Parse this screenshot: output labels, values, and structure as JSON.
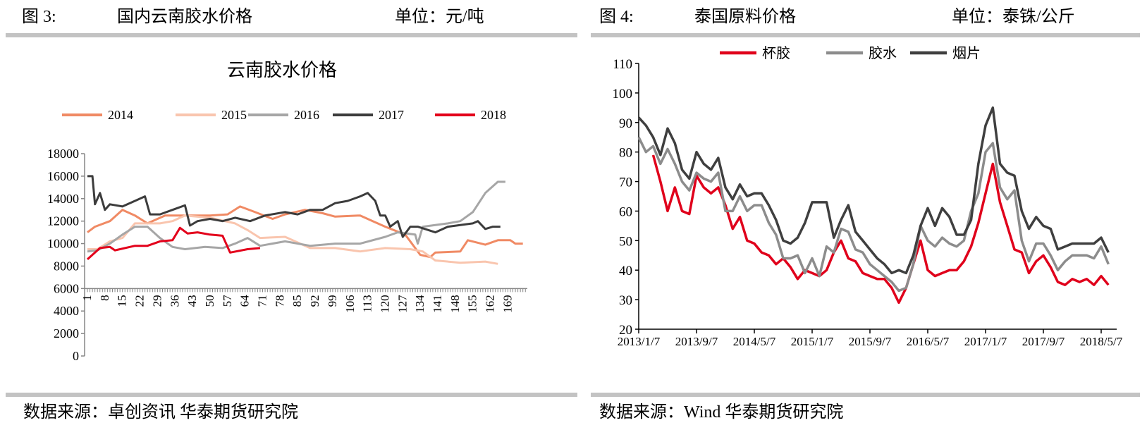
{
  "left_panel": {
    "figure_label": "图 3:",
    "figure_title": "国内云南胶水价格",
    "unit": "单位：元/吨",
    "source": "数据来源：卓创资讯  华泰期货研究院"
  },
  "right_panel": {
    "figure_label": "图 4:",
    "figure_title": "泰国原料价格",
    "unit": "单位：泰铢/公斤",
    "source": "数据来源：Wind  华泰期货研究院"
  },
  "chart_data": [
    {
      "type": "line",
      "title": "云南胶水价格",
      "xlabel": "",
      "ylabel": "",
      "ylim": [
        0,
        18000
      ],
      "x_axis_crosses_at": 6000,
      "xlim": [
        1,
        176
      ],
      "x_tick_labels": [
        "1",
        "8",
        "15",
        "22",
        "29",
        "36",
        "43",
        "50",
        "57",
        "64",
        "71",
        "78",
        "85",
        "92",
        "99",
        "106",
        "113",
        "120",
        "127",
        "134",
        "141",
        "148",
        "155",
        "162",
        "169"
      ],
      "y_tick_labels": [
        "0",
        "2000",
        "4000",
        "6000",
        "8000",
        "10000",
        "12000",
        "14000",
        "16000",
        "18000"
      ],
      "grid": false,
      "legend": "top",
      "series": [
        {
          "name": "2014",
          "color": "#F08A64",
          "points": [
            [
              1,
              11000
            ],
            [
              4,
              11500
            ],
            [
              10,
              12000
            ],
            [
              15,
              13000
            ],
            [
              20,
              12500
            ],
            [
              25,
              11800
            ],
            [
              32,
              12500
            ],
            [
              40,
              12500
            ],
            [
              50,
              12500
            ],
            [
              57,
              12600
            ],
            [
              62,
              13300
            ],
            [
              68,
              12800
            ],
            [
              75,
              12200
            ],
            [
              80,
              12600
            ],
            [
              88,
              13000
            ],
            [
              95,
              12700
            ],
            [
              100,
              12400
            ],
            [
              110,
              12500
            ],
            [
              115,
              12000
            ],
            [
              120,
              11500
            ],
            [
              128,
              10800
            ],
            [
              134,
              9000
            ],
            [
              138,
              8800
            ],
            [
              140,
              9200
            ],
            [
              150,
              9300
            ],
            [
              153,
              10300
            ],
            [
              160,
              9900
            ],
            [
              165,
              10300
            ],
            [
              170,
              10300
            ],
            [
              172,
              10000
            ],
            [
              175,
              10000
            ]
          ]
        },
        {
          "name": "2015",
          "color": "#F9C5AE",
          "points": [
            [
              1,
              9500
            ],
            [
              5,
              9500
            ],
            [
              10,
              10200
            ],
            [
              15,
              10500
            ],
            [
              20,
              11800
            ],
            [
              30,
              11800
            ],
            [
              35,
              12000
            ],
            [
              40,
              12500
            ],
            [
              50,
              12300
            ],
            [
              60,
              11800
            ],
            [
              65,
              11200
            ],
            [
              70,
              10500
            ],
            [
              80,
              10600
            ],
            [
              90,
              9600
            ],
            [
              100,
              9600
            ],
            [
              110,
              9300
            ],
            [
              120,
              9600
            ],
            [
              130,
              9500
            ],
            [
              135,
              9300
            ],
            [
              140,
              8500
            ],
            [
              150,
              8300
            ],
            [
              160,
              8400
            ],
            [
              165,
              8200
            ]
          ]
        },
        {
          "name": "2016",
          "color": "#A6A6A6",
          "points": [
            [
              1,
              9300
            ],
            [
              5,
              9400
            ],
            [
              10,
              10000
            ],
            [
              15,
              10800
            ],
            [
              20,
              11500
            ],
            [
              25,
              11500
            ],
            [
              30,
              10500
            ],
            [
              35,
              9700
            ],
            [
              40,
              9500
            ],
            [
              48,
              9700
            ],
            [
              55,
              9600
            ],
            [
              60,
              10000
            ],
            [
              65,
              10500
            ],
            [
              70,
              9800
            ],
            [
              80,
              10200
            ],
            [
              90,
              9800
            ],
            [
              100,
              10000
            ],
            [
              110,
              10000
            ],
            [
              120,
              10600
            ],
            [
              125,
              11000
            ],
            [
              132,
              10800
            ],
            [
              133,
              10000
            ],
            [
              135,
              11500
            ],
            [
              145,
              11800
            ],
            [
              150,
              12000
            ],
            [
              155,
              12800
            ],
            [
              160,
              14500
            ],
            [
              165,
              15500
            ],
            [
              168,
              15500
            ]
          ]
        },
        {
          "name": "2017",
          "color": "#3C3C3C",
          "points": [
            [
              1,
              16000
            ],
            [
              3,
              16000
            ],
            [
              4,
              13500
            ],
            [
              6,
              14500
            ],
            [
              8,
              13000
            ],
            [
              10,
              13500
            ],
            [
              15,
              13300
            ],
            [
              20,
              13800
            ],
            [
              24,
              14200
            ],
            [
              26,
              12600
            ],
            [
              30,
              12600
            ],
            [
              35,
              13000
            ],
            [
              40,
              13400
            ],
            [
              42,
              11600
            ],
            [
              45,
              12000
            ],
            [
              50,
              12200
            ],
            [
              55,
              12000
            ],
            [
              60,
              12300
            ],
            [
              66,
              12000
            ],
            [
              72,
              12500
            ],
            [
              80,
              12800
            ],
            [
              85,
              12600
            ],
            [
              90,
              13000
            ],
            [
              95,
              13000
            ],
            [
              100,
              13600
            ],
            [
              105,
              13800
            ],
            [
              110,
              14200
            ],
            [
              113,
              14500
            ],
            [
              116,
              13800
            ],
            [
              118,
              12500
            ],
            [
              120,
              12500
            ],
            [
              122,
              11500
            ],
            [
              125,
              12000
            ],
            [
              127,
              10600
            ],
            [
              130,
              11500
            ],
            [
              133,
              11500
            ],
            [
              140,
              11000
            ],
            [
              145,
              11500
            ],
            [
              155,
              11800
            ],
            [
              157,
              12000
            ],
            [
              160,
              11300
            ],
            [
              163,
              11500
            ],
            [
              166,
              11500
            ]
          ]
        },
        {
          "name": "2018",
          "color": "#E3001B",
          "points": [
            [
              1,
              8600
            ],
            [
              3,
              9000
            ],
            [
              6,
              9600
            ],
            [
              10,
              9700
            ],
            [
              12,
              9400
            ],
            [
              20,
              9800
            ],
            [
              25,
              9800
            ],
            [
              30,
              10200
            ],
            [
              35,
              10300
            ],
            [
              38,
              11400
            ],
            [
              41,
              10900
            ],
            [
              45,
              11000
            ],
            [
              50,
              10800
            ],
            [
              55,
              10700
            ],
            [
              58,
              9200
            ],
            [
              65,
              9500
            ],
            [
              70,
              9600
            ]
          ]
        }
      ]
    },
    {
      "type": "line",
      "title": "",
      "xlabel": "",
      "ylabel": "",
      "ylim": [
        20,
        110
      ],
      "y_tick_labels": [
        "20",
        "30",
        "40",
        "50",
        "60",
        "70",
        "80",
        "90",
        "100",
        "110"
      ],
      "x_tick_labels": [
        "2013/1/7",
        "2013/9/7",
        "2014/5/7",
        "2015/1/7",
        "2015/9/7",
        "2016/5/7",
        "2017/1/7",
        "2017/9/7",
        "2018/5/7"
      ],
      "grid": false,
      "legend": "top",
      "x": [
        "2013-01",
        "2013-02",
        "2013-03",
        "2013-04",
        "2013-05",
        "2013-06",
        "2013-07",
        "2013-08",
        "2013-09",
        "2013-10",
        "2013-11",
        "2013-12",
        "2014-01",
        "2014-02",
        "2014-03",
        "2014-04",
        "2014-05",
        "2014-06",
        "2014-07",
        "2014-08",
        "2014-09",
        "2014-10",
        "2014-11",
        "2014-12",
        "2015-01",
        "2015-02",
        "2015-03",
        "2015-04",
        "2015-05",
        "2015-06",
        "2015-07",
        "2015-08",
        "2015-09",
        "2015-10",
        "2015-11",
        "2015-12",
        "2016-01",
        "2016-02",
        "2016-03",
        "2016-04",
        "2016-05",
        "2016-06",
        "2016-07",
        "2016-08",
        "2016-09",
        "2016-10",
        "2016-11",
        "2016-12",
        "2017-01",
        "2017-02",
        "2017-03",
        "2017-04",
        "2017-05",
        "2017-06",
        "2017-07",
        "2017-08",
        "2017-09",
        "2017-10",
        "2017-11",
        "2017-12",
        "2018-01",
        "2018-02",
        "2018-03",
        "2018-04",
        "2018-05",
        "2018-06"
      ],
      "series": [
        {
          "name": "杯胶",
          "color": "#E0001B",
          "values": [
            null,
            null,
            79,
            70,
            60,
            68,
            60,
            59,
            72,
            68,
            66,
            68,
            62,
            54,
            58,
            50,
            49,
            46,
            45,
            42,
            44,
            41,
            37,
            40,
            39,
            38,
            40,
            46,
            50,
            44,
            43,
            39,
            38,
            37,
            37,
            34,
            29,
            34,
            42,
            50,
            40,
            38,
            39,
            40,
            40,
            43,
            48,
            56,
            66,
            76,
            63,
            55,
            47,
            46,
            39,
            43,
            45,
            41,
            36,
            35,
            37,
            36,
            37,
            35,
            38,
            35
          ]
        },
        {
          "name": "胶水",
          "color": "#8C8C8C",
          "values": [
            85,
            80,
            82,
            76,
            81,
            76,
            70,
            67,
            73,
            71,
            70,
            73,
            60,
            60,
            65,
            60,
            62,
            62,
            56,
            52,
            44,
            44,
            45,
            39,
            44,
            38,
            48,
            46,
            54,
            53,
            47,
            46,
            42,
            40,
            38,
            36,
            33,
            34,
            42,
            55,
            50,
            48,
            51,
            49,
            48,
            50,
            60,
            66,
            80,
            83,
            68,
            64,
            67,
            50,
            43,
            49,
            49,
            45,
            40,
            43,
            45,
            45,
            45,
            44,
            48,
            42
          ]
        },
        {
          "name": "烟片",
          "color": "#3F3F3F",
          "values": [
            91.7,
            89,
            85,
            79,
            88,
            83,
            74,
            71,
            80,
            76,
            74,
            78,
            68,
            64,
            69,
            65,
            66,
            66,
            62,
            57,
            50,
            49,
            51,
            56,
            63,
            63,
            63,
            51,
            57,
            62,
            53,
            50,
            47,
            44,
            42,
            39,
            40,
            39,
            45,
            55,
            61,
            55,
            61,
            58,
            52,
            52,
            57,
            76,
            89,
            95,
            76,
            73,
            72,
            60,
            54,
            58,
            55,
            54,
            47,
            48,
            49,
            49,
            49,
            49,
            51,
            46
          ]
        }
      ]
    }
  ]
}
